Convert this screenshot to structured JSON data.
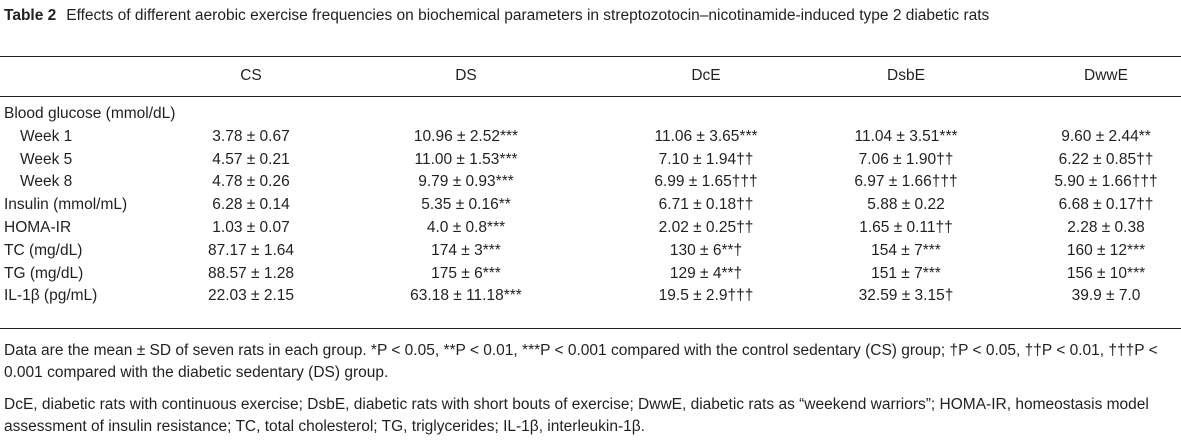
{
  "caption": {
    "label": "Table 2",
    "text": "Effects of different aerobic exercise frequencies on biochemical parameters in streptozotocin–nicotinamide-induced type 2 diabetic rats"
  },
  "columns": [
    "CS",
    "DS",
    "DcE",
    "DsbE",
    "DwwE"
  ],
  "rows": [
    {
      "label": "Blood glucose (mmol/dL)",
      "indent": false,
      "values": [
        "",
        "",
        "",
        "",
        ""
      ]
    },
    {
      "label": "Week 1",
      "indent": true,
      "values": [
        "3.78 ± 0.67",
        "10.96 ± 2.52***",
        "11.06 ± 3.65***",
        "11.04 ± 3.51***",
        "9.60 ± 2.44**"
      ]
    },
    {
      "label": "Week 5",
      "indent": true,
      "values": [
        "4.57 ± 0.21",
        "11.00 ± 1.53***",
        "7.10 ± 1.94††",
        "7.06 ± 1.90††",
        "6.22 ± 0.85††"
      ]
    },
    {
      "label": "Week 8",
      "indent": true,
      "values": [
        "4.78 ± 0.26",
        "9.79 ± 0.93***",
        "6.99 ± 1.65†††",
        "6.97 ± 1.66†††",
        "5.90 ± 1.66†††"
      ]
    },
    {
      "label": "Insulin (mmol/mL)",
      "indent": false,
      "values": [
        "6.28 ± 0.14",
        "5.35 ± 0.16**",
        "6.71 ± 0.18††",
        "5.88 ± 0.22",
        "6.68 ± 0.17††"
      ]
    },
    {
      "label": "HOMA-IR",
      "indent": false,
      "values": [
        "1.03 ± 0.07",
        "4.0 ± 0.8***",
        "2.02 ± 0.25††",
        "1.65 ± 0.11††",
        "2.28 ± 0.38"
      ]
    },
    {
      "label": "TC (mg/dL)",
      "indent": false,
      "values": [
        "87.17 ± 1.64",
        "174 ± 3***",
        "130 ± 6**†",
        "154 ± 7***",
        "160 ± 12***"
      ]
    },
    {
      "label": "TG (mg/dL)",
      "indent": false,
      "values": [
        "88.57 ± 1.28",
        "175 ± 6***",
        "129 ± 4**†",
        "151 ± 7***",
        "156 ± 10***"
      ]
    },
    {
      "label": "IL-1β (pg/mL)",
      "indent": false,
      "values": [
        "22.03 ± 2.15",
        "63.18 ± 11.18***",
        "19.5 ± 2.9†††",
        "32.59 ± 3.15†",
        "39.9 ± 7.0"
      ]
    }
  ],
  "footnotes": [
    "Data are the mean ± SD of seven rats in each group. *P < 0.05, **P < 0.01, ***P < 0.001 compared with the control sedentary (CS) group; †P < 0.05, ††P < 0.01, †††P < 0.001 compared with the diabetic sedentary (DS) group.",
    "DcE, diabetic rats with continuous exercise; DsbE, diabetic rats with short bouts of exercise; DwwE, diabetic rats as “weekend warriors”; HOMA-IR, homeostasis model assessment of insulin resistance; TC, total cholesterol; TG, triglycerides; IL-1β, interleukin-1β."
  ]
}
